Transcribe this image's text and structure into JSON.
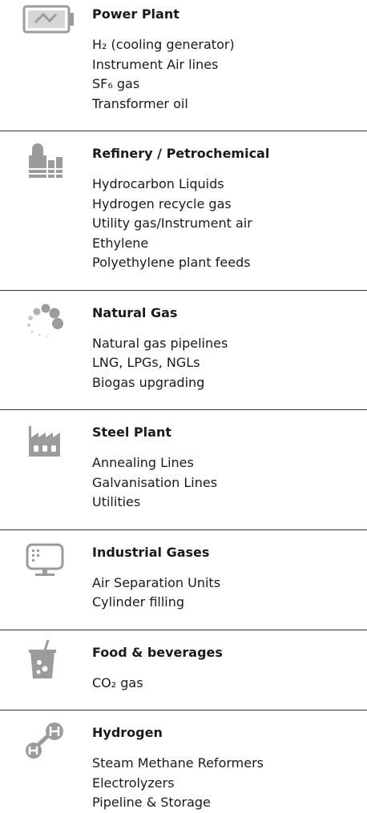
{
  "sections": [
    {
      "title": "Power Plant",
      "items": [
        "H₂ (cooling generator)",
        "Instrument Air lines",
        "SF₆ gas",
        "Transformer oil"
      ]
    },
    {
      "title": "Refinery / Petrochemical",
      "items": [
        "Hydrocarbon Liquids",
        "Hydrogen recycle gas",
        "Utility gas/Instrument air",
        "Ethylene",
        "Polyethylene plant feeds"
      ]
    },
    {
      "title": "Natural Gas",
      "items": [
        "Natural gas pipelines",
        "LNG, LPGs, NGLs",
        "Biogas upgrading"
      ]
    },
    {
      "title": "Steel Plant",
      "items": [
        "Annealing Lines",
        "Galvanisation Lines",
        "Utilities"
      ]
    },
    {
      "title": "Industrial Gases",
      "items": [
        "Air Separation Units",
        "Cylinder filling"
      ]
    },
    {
      "title": "Food & beverages",
      "items": [
        "CO₂ gas"
      ]
    },
    {
      "title": "Hydrogen",
      "items": [
        "Steam Methane Reformers",
        "Electrolyzers",
        "Pipeline & Storage"
      ]
    }
  ]
}
